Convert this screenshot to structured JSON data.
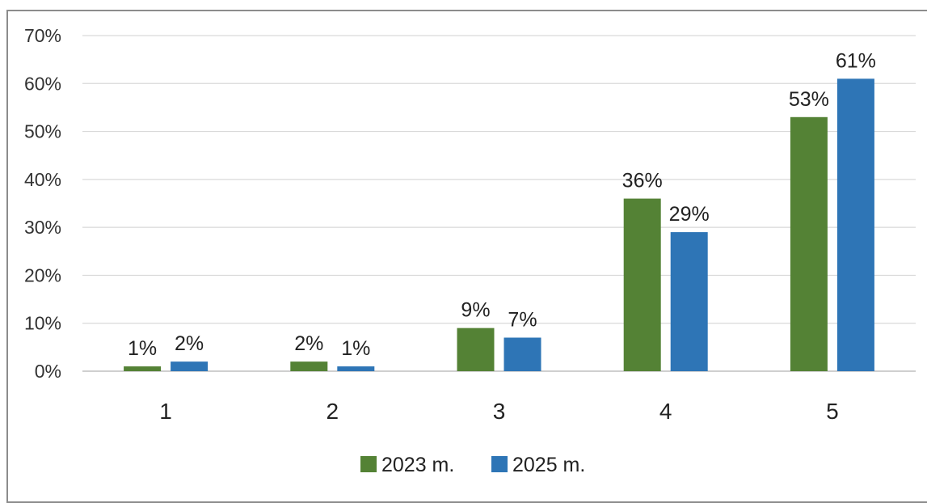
{
  "chart_data": {
    "type": "bar",
    "categories": [
      "1",
      "2",
      "3",
      "4",
      "5"
    ],
    "series": [
      {
        "name": "2023 m.",
        "values": [
          1,
          2,
          9,
          36,
          53
        ],
        "color": "#548235"
      },
      {
        "name": "2025 m.",
        "values": [
          2,
          1,
          7,
          29,
          61
        ],
        "color": "#2e75b6"
      }
    ],
    "value_suffix": "%",
    "ylim": [
      0,
      70
    ],
    "yticks": [
      0,
      10,
      20,
      30,
      40,
      50,
      60,
      70
    ],
    "grid": true,
    "legend": "bottom",
    "title": "",
    "xlabel": "",
    "ylabel": ""
  }
}
